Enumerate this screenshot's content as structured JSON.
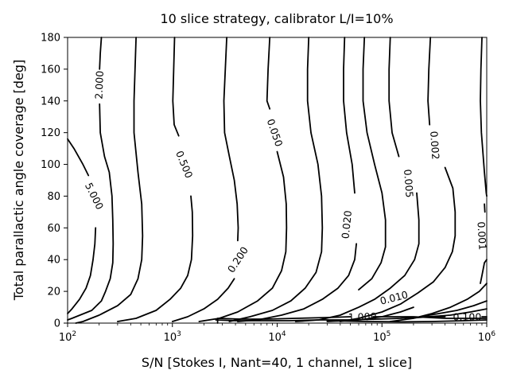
{
  "chart_data": {
    "type": "contour",
    "title": "10 slice strategy, calibrator L/I=10%",
    "xlabel": "S/N [Stokes I, Nant=40, 1 channel, 1 slice]",
    "ylabel": "Total parallactic angle coverage [deg]",
    "xscale": "log",
    "xlim": [
      100,
      1000000
    ],
    "ylim": [
      0,
      180
    ],
    "x_ticks": [
      {
        "base": "10",
        "exp": "2"
      },
      {
        "base": "10",
        "exp": "3"
      },
      {
        "base": "10",
        "exp": "4"
      },
      {
        "base": "10",
        "exp": "5"
      },
      {
        "base": "10",
        "exp": "6"
      }
    ],
    "y_ticks": [
      "0",
      "20",
      "40",
      "60",
      "80",
      "100",
      "120",
      "140",
      "160",
      "180"
    ],
    "grid": false,
    "contours": [
      {
        "level": "5.000",
        "label_at": [
          180,
          80
        ],
        "points": [
          [
            100,
            116
          ],
          [
            115,
            110
          ],
          [
            140,
            100
          ],
          [
            158,
            93
          ]
        ],
        "points2": [
          [
            185,
            60
          ],
          [
            182,
            50
          ],
          [
            175,
            40
          ],
          [
            165,
            30
          ],
          [
            150,
            22
          ],
          [
            130,
            15
          ],
          [
            110,
            9
          ],
          [
            100,
            6
          ]
        ]
      },
      {
        "level": "2.000",
        "label_at": [
          200,
          150
        ],
        "points": [
          [
            210,
            180
          ],
          [
            205,
            170
          ],
          [
            202,
            160
          ]
        ],
        "points2": [
          [
            202,
            138
          ],
          [
            205,
            120
          ],
          [
            225,
            105
          ],
          [
            250,
            95
          ],
          [
            265,
            80
          ],
          [
            270,
            65
          ],
          [
            272,
            50
          ],
          [
            270,
            38
          ],
          [
            255,
            28
          ],
          [
            230,
            20
          ],
          [
            210,
            14
          ],
          [
            170,
            8
          ],
          [
            110,
            3
          ],
          [
            100,
            2
          ]
        ]
      },
      {
        "level": "",
        "points": [
          [
            450,
            180
          ],
          [
            440,
            160
          ],
          [
            430,
            140
          ],
          [
            430,
            120
          ],
          [
            470,
            95
          ],
          [
            510,
            75
          ],
          [
            520,
            55
          ],
          [
            510,
            40
          ],
          [
            470,
            28
          ],
          [
            400,
            18
          ],
          [
            300,
            11
          ],
          [
            200,
            5
          ],
          [
            140,
            1
          ],
          [
            120,
            0
          ]
        ]
      },
      {
        "level": "0.500",
        "label_at": [
          1300,
          100
        ],
        "points": [
          [
            1050,
            180
          ],
          [
            1030,
            160
          ],
          [
            1010,
            140
          ],
          [
            1040,
            125
          ],
          [
            1150,
            118
          ]
        ],
        "points2": [
          [
            1500,
            80
          ],
          [
            1550,
            70
          ],
          [
            1560,
            55
          ],
          [
            1520,
            40
          ],
          [
            1400,
            30
          ],
          [
            1200,
            22
          ],
          [
            950,
            15
          ],
          [
            700,
            8
          ],
          [
            450,
            3
          ],
          [
            300,
            1
          ]
        ]
      },
      {
        "level": "0.200",
        "label_at": [
          4200,
          40
        ],
        "points": [
          [
            3300,
            180
          ],
          [
            3200,
            160
          ],
          [
            3100,
            140
          ],
          [
            3150,
            120
          ],
          [
            3500,
            105
          ],
          [
            3900,
            90
          ],
          [
            4150,
            75
          ],
          [
            4250,
            60
          ],
          [
            4200,
            52
          ]
        ],
        "points2": [
          [
            3900,
            28
          ],
          [
            3400,
            22
          ],
          [
            2700,
            15
          ],
          [
            2000,
            9
          ],
          [
            1400,
            4
          ],
          [
            1000,
            1
          ]
        ]
      },
      {
        "level": "0.050",
        "label_at": [
          9500,
          120
        ],
        "points": [
          [
            8500,
            180
          ],
          [
            8200,
            160
          ],
          [
            8000,
            140
          ],
          [
            8500,
            135
          ]
        ],
        "points2": [
          [
            10000,
            108
          ],
          [
            11500,
            92
          ],
          [
            12200,
            75
          ],
          [
            12300,
            60
          ],
          [
            12100,
            45
          ],
          [
            11000,
            33
          ],
          [
            9000,
            22
          ],
          [
            6500,
            14
          ],
          [
            4200,
            7
          ],
          [
            2800,
            3
          ],
          [
            1800,
            1
          ]
        ]
      },
      {
        "level": "",
        "points": [
          [
            20000,
            180
          ],
          [
            19500,
            160
          ],
          [
            19500,
            140
          ],
          [
            21000,
            120
          ],
          [
            24500,
            100
          ],
          [
            26500,
            80
          ],
          [
            27000,
            60
          ],
          [
            26500,
            45
          ],
          [
            23500,
            32
          ],
          [
            18500,
            22
          ],
          [
            13500,
            14
          ],
          [
            9000,
            8
          ],
          [
            5500,
            4
          ],
          [
            3500,
            1
          ]
        ]
      },
      {
        "level": "0.020",
        "label_at": [
          46000,
          62
        ],
        "points": [
          [
            44000,
            180
          ],
          [
            43000,
            160
          ],
          [
            43000,
            140
          ],
          [
            46000,
            120
          ],
          [
            52000,
            100
          ],
          [
            55000,
            82
          ]
        ],
        "points2": [
          [
            57000,
            50
          ],
          [
            55000,
            40
          ],
          [
            48000,
            30
          ],
          [
            38000,
            22
          ],
          [
            27000,
            15
          ],
          [
            18000,
            9
          ],
          [
            11000,
            5
          ],
          [
            6500,
            2
          ],
          [
            4200,
            1
          ]
        ]
      },
      {
        "level": "0.005",
        "label_at": [
          180000,
          88
        ],
        "points": [
          [
            120000,
            180
          ],
          [
            117000,
            160
          ],
          [
            117000,
            140
          ],
          [
            125000,
            120
          ],
          [
            145000,
            105
          ]
        ],
        "points2": [
          [
            215000,
            82
          ],
          [
            225000,
            65
          ],
          [
            225000,
            50
          ],
          [
            205000,
            40
          ],
          [
            165000,
            30
          ],
          [
            120000,
            22
          ],
          [
            85000,
            15
          ],
          [
            60000,
            10
          ],
          [
            40000,
            5
          ],
          [
            25000,
            2
          ],
          [
            15000,
            1
          ]
        ]
      },
      {
        "level": "0.002",
        "label_at": [
          320000,
          112
        ],
        "points": [
          [
            290000,
            180
          ],
          [
            280000,
            160
          ],
          [
            275000,
            140
          ],
          [
            285000,
            125
          ]
        ],
        "points2": [
          [
            400000,
            98
          ],
          [
            475000,
            85
          ],
          [
            500000,
            70
          ],
          [
            500000,
            55
          ],
          [
            470000,
            45
          ],
          [
            400000,
            35
          ],
          [
            310000,
            26
          ],
          [
            220000,
            19
          ],
          [
            150000,
            12
          ],
          [
            100000,
            7
          ],
          [
            60000,
            3
          ],
          [
            40000,
            1
          ]
        ]
      },
      {
        "level": "0.010",
        "label_at": [
          130000,
          16
        ],
        "points": [
          [
            68000,
            180
          ],
          [
            66000,
            160
          ],
          [
            66000,
            140
          ],
          [
            72000,
            120
          ],
          [
            85000,
            100
          ],
          [
            100000,
            82
          ],
          [
            108000,
            65
          ],
          [
            108000,
            48
          ],
          [
            98000,
            38
          ],
          [
            80000,
            28
          ],
          [
            60000,
            21
          ]
        ],
        "points2": [
          [
            200000,
            10
          ],
          [
            150000,
            7
          ],
          [
            100000,
            4
          ],
          [
            60000,
            2
          ],
          [
            30000,
            1
          ]
        ]
      },
      {
        "level": "0.001",
        "label_at": [
          900000,
          55
        ],
        "points": [
          [
            950000,
            75
          ],
          [
            960000,
            70
          ]
        ],
        "points2": [
          [
            1000000,
            25
          ],
          [
            850000,
            20
          ],
          [
            650000,
            15
          ],
          [
            450000,
            10
          ],
          [
            300000,
            6
          ],
          [
            200000,
            3
          ],
          [
            120000,
            1
          ]
        ]
      },
      {
        "level": "",
        "points": [
          [
            900000,
            180
          ],
          [
            880000,
            160
          ],
          [
            870000,
            140
          ],
          [
            890000,
            120
          ],
          [
            950000,
            95
          ],
          [
            990000,
            82
          ],
          [
            1000000,
            80
          ]
        ]
      },
      {
        "level": "",
        "points": [
          [
            1000000,
            40
          ],
          [
            950000,
            38
          ],
          [
            900000,
            30
          ],
          [
            870000,
            25
          ]
        ]
      },
      {
        "level": "0.100",
        "label_at": [
          650000,
          4
        ],
        "points": [
          [
            400000,
            4
          ],
          [
            250000,
            4
          ],
          [
            150000,
            3
          ],
          [
            90000,
            2.5
          ],
          [
            50000,
            2
          ],
          [
            25000,
            2
          ],
          [
            13000,
            1.5
          ],
          [
            7000,
            1.5
          ],
          [
            4000,
            1.5
          ],
          [
            2600,
            2
          ]
        ],
        "points2": [
          [
            900000,
            4
          ],
          [
            1000000,
            4
          ]
        ]
      },
      {
        "level": "1.000",
        "label_at": [
          65000,
          4
        ],
        "points": [
          [
            50000,
            4
          ],
          [
            30000,
            3.5
          ],
          [
            15000,
            3
          ],
          [
            8000,
            2.5
          ],
          [
            4500,
            2.5
          ],
          [
            2700,
            3
          ],
          [
            2700,
            0
          ]
        ],
        "points2": [
          [
            82000,
            4
          ],
          [
            200000,
            4
          ],
          [
            400000,
            3
          ],
          [
            700000,
            3
          ],
          [
            1000000,
            3
          ]
        ]
      },
      {
        "level": "",
        "points": [
          [
            1000000,
            9
          ],
          [
            700000,
            7
          ],
          [
            450000,
            5
          ],
          [
            280000,
            4
          ],
          [
            180000,
            3
          ]
        ]
      },
      {
        "level": "",
        "points": [
          [
            1000000,
            14
          ],
          [
            750000,
            11
          ],
          [
            520000,
            8
          ],
          [
            350000,
            6
          ],
          [
            230000,
            4
          ]
        ]
      },
      {
        "level": "",
        "points": [
          [
            1000000,
            2
          ],
          [
            600000,
            1.5
          ],
          [
            300000,
            1
          ],
          [
            150000,
            0.8
          ],
          [
            70000,
            1
          ],
          [
            30000,
            1.5
          ]
        ]
      }
    ]
  }
}
